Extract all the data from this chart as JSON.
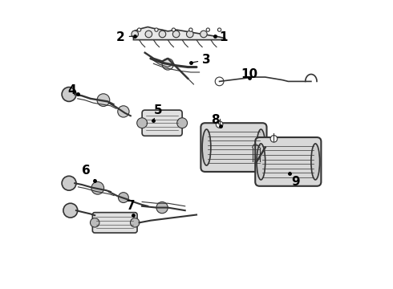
{
  "bg_color": "#ffffff",
  "line_color": "#333333",
  "label_fontsize": 11,
  "label_fontweight": "bold",
  "label_positions": {
    "1": [
      0.595,
      0.875,
      0.565,
      0.878
    ],
    "2": [
      0.235,
      0.875,
      0.285,
      0.878
    ],
    "3": [
      0.535,
      0.795,
      0.48,
      0.785
    ],
    "4": [
      0.065,
      0.69,
      0.085,
      0.675
    ],
    "5": [
      0.365,
      0.62,
      0.35,
      0.585
    ],
    "6": [
      0.115,
      0.41,
      0.145,
      0.375
    ],
    "7": [
      0.27,
      0.285,
      0.28,
      0.255
    ],
    "8": [
      0.565,
      0.585,
      0.585,
      0.565
    ],
    "9": [
      0.845,
      0.37,
      0.825,
      0.4
    ],
    "10": [
      0.685,
      0.745,
      0.685,
      0.732
    ]
  }
}
